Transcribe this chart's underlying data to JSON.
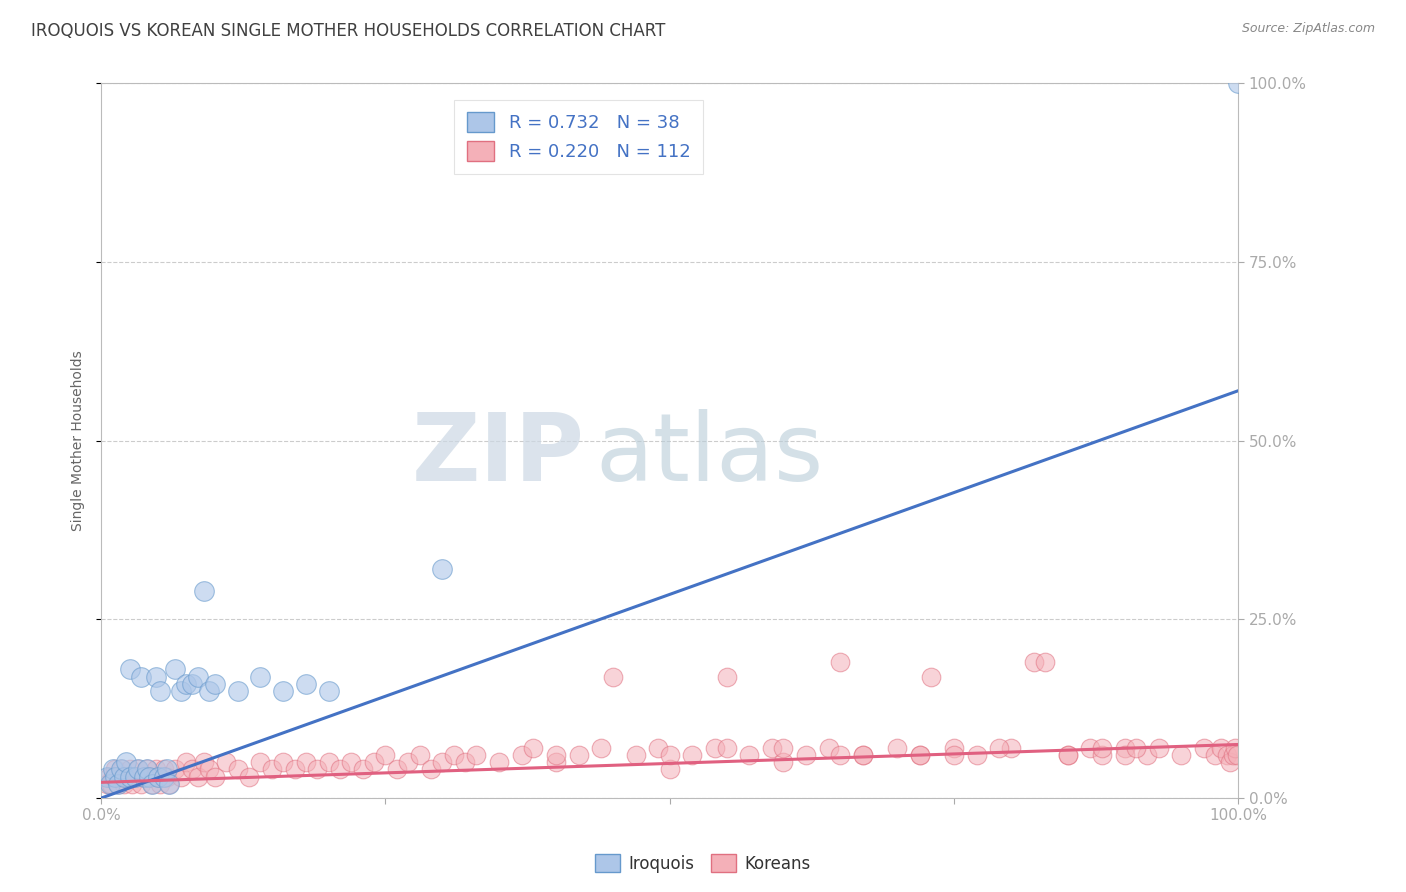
{
  "title": "IROQUOIS VS KOREAN SINGLE MOTHER HOUSEHOLDS CORRELATION CHART",
  "source": "Source: ZipAtlas.com",
  "ylabel": "Single Mother Households",
  "xlim": [
    0.0,
    1.0
  ],
  "ylim": [
    0.0,
    1.0
  ],
  "xticks": [
    0.0,
    0.25,
    0.5,
    0.75,
    1.0
  ],
  "xtick_labels": [
    "0.0%",
    "",
    "",
    "",
    "100.0%"
  ],
  "yticks": [
    0.0,
    0.25,
    0.5,
    0.75,
    1.0
  ],
  "ytick_labels": [
    "0.0%",
    "25.0%",
    "50.0%",
    "75.0%",
    "100.0%"
  ],
  "iroquois_R": 0.732,
  "iroquois_N": 38,
  "korean_R": 0.22,
  "korean_N": 112,
  "iroquois_patch_color": "#adc6e8",
  "korean_patch_color": "#f4aaб4",
  "iroquois_line_color": "#4472c4",
  "korean_line_color": "#e06080",
  "iroquois_scatter_face": "#adc6e8",
  "iroquois_scatter_edge": "#6699cc",
  "korean_scatter_face": "#f4b0b8",
  "korean_scatter_edge": "#e07080",
  "watermark_zip_color": "#d0dce8",
  "watermark_atlas_color": "#b8ccdc",
  "background_color": "#ffffff",
  "grid_color": "#cccccc",
  "title_color": "#404040",
  "axis_label_color": "#4472c4",
  "iroquois_line_x0": 0.0,
  "iroquois_line_y0": 0.0,
  "iroquois_line_x1": 1.0,
  "iroquois_line_y1": 0.57,
  "korean_line_x0": 0.0,
  "korean_line_y0": 0.022,
  "korean_line_x1": 1.0,
  "korean_line_y1": 0.075,
  "iroquois_points_x": [
    0.005,
    0.008,
    0.01,
    0.012,
    0.015,
    0.017,
    0.02,
    0.022,
    0.025,
    0.025,
    0.03,
    0.032,
    0.035,
    0.038,
    0.04,
    0.042,
    0.045,
    0.048,
    0.05,
    0.052,
    0.055,
    0.058,
    0.06,
    0.065,
    0.07,
    0.075,
    0.08,
    0.085,
    0.09,
    0.095,
    0.1,
    0.12,
    0.14,
    0.16,
    0.18,
    0.2,
    0.3,
    1.0
  ],
  "iroquois_points_y": [
    0.03,
    0.02,
    0.04,
    0.03,
    0.02,
    0.04,
    0.03,
    0.05,
    0.03,
    0.18,
    0.03,
    0.04,
    0.17,
    0.03,
    0.04,
    0.03,
    0.02,
    0.17,
    0.03,
    0.15,
    0.03,
    0.04,
    0.02,
    0.18,
    0.15,
    0.16,
    0.16,
    0.17,
    0.29,
    0.15,
    0.16,
    0.15,
    0.17,
    0.15,
    0.16,
    0.15,
    0.32,
    1.0
  ],
  "korean_points_x": [
    0.005,
    0.007,
    0.009,
    0.01,
    0.012,
    0.015,
    0.017,
    0.018,
    0.02,
    0.022,
    0.025,
    0.027,
    0.03,
    0.032,
    0.035,
    0.038,
    0.04,
    0.042,
    0.045,
    0.048,
    0.05,
    0.052,
    0.055,
    0.058,
    0.06,
    0.065,
    0.07,
    0.075,
    0.08,
    0.085,
    0.09,
    0.095,
    0.1,
    0.11,
    0.12,
    0.13,
    0.14,
    0.15,
    0.16,
    0.17,
    0.18,
    0.19,
    0.2,
    0.21,
    0.22,
    0.23,
    0.24,
    0.25,
    0.26,
    0.27,
    0.28,
    0.29,
    0.3,
    0.31,
    0.32,
    0.33,
    0.35,
    0.37,
    0.38,
    0.4,
    0.42,
    0.44,
    0.45,
    0.47,
    0.49,
    0.5,
    0.52,
    0.54,
    0.55,
    0.57,
    0.59,
    0.6,
    0.62,
    0.64,
    0.65,
    0.67,
    0.7,
    0.72,
    0.75,
    0.77,
    0.8,
    0.82,
    0.85,
    0.87,
    0.88,
    0.9,
    0.92,
    0.93,
    0.95,
    0.97,
    0.98,
    0.985,
    0.99,
    0.993,
    0.995,
    0.997,
    0.999,
    0.5,
    0.65,
    0.72,
    0.4,
    0.55,
    0.75,
    0.83,
    0.88,
    0.9,
    0.6,
    0.67,
    0.73,
    0.79,
    0.85,
    0.91
  ],
  "korean_points_y": [
    0.02,
    0.03,
    0.02,
    0.03,
    0.04,
    0.02,
    0.03,
    0.04,
    0.02,
    0.03,
    0.04,
    0.02,
    0.03,
    0.04,
    0.02,
    0.03,
    0.04,
    0.03,
    0.02,
    0.04,
    0.03,
    0.02,
    0.04,
    0.03,
    0.02,
    0.04,
    0.03,
    0.05,
    0.04,
    0.03,
    0.05,
    0.04,
    0.03,
    0.05,
    0.04,
    0.03,
    0.05,
    0.04,
    0.05,
    0.04,
    0.05,
    0.04,
    0.05,
    0.04,
    0.05,
    0.04,
    0.05,
    0.06,
    0.04,
    0.05,
    0.06,
    0.04,
    0.05,
    0.06,
    0.05,
    0.06,
    0.05,
    0.06,
    0.07,
    0.05,
    0.06,
    0.07,
    0.17,
    0.06,
    0.07,
    0.04,
    0.06,
    0.07,
    0.17,
    0.06,
    0.07,
    0.05,
    0.06,
    0.07,
    0.19,
    0.06,
    0.07,
    0.06,
    0.07,
    0.06,
    0.07,
    0.19,
    0.06,
    0.07,
    0.06,
    0.07,
    0.06,
    0.07,
    0.06,
    0.07,
    0.06,
    0.07,
    0.06,
    0.05,
    0.06,
    0.07,
    0.06,
    0.06,
    0.06,
    0.06,
    0.06,
    0.07,
    0.06,
    0.19,
    0.07,
    0.06,
    0.07,
    0.06,
    0.17,
    0.07,
    0.06,
    0.07
  ]
}
